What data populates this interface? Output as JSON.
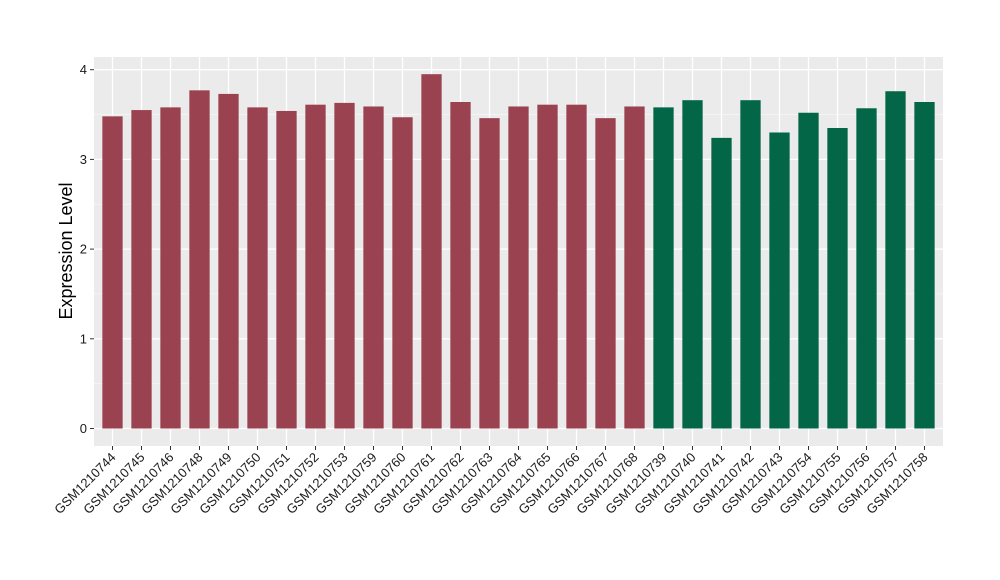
{
  "chart_data": {
    "type": "bar",
    "title": "",
    "xlabel": "",
    "ylabel": "Expression Level",
    "ylim": [
      0,
      4.1
    ],
    "yticks": [
      0,
      1,
      2,
      3,
      4
    ],
    "grid": true,
    "legend": "none",
    "background": "#ebebeb",
    "gridline_color": "#ffffff",
    "categories": [
      "GSM1210744",
      "GSM1210745",
      "GSM1210746",
      "GSM1210748",
      "GSM1210749",
      "GSM1210750",
      "GSM1210751",
      "GSM1210752",
      "GSM1210753",
      "GSM1210759",
      "GSM1210760",
      "GSM1210761",
      "GSM1210762",
      "GSM1210763",
      "GSM1210764",
      "GSM1210765",
      "GSM1210766",
      "GSM1210767",
      "GSM1210768",
      "GSM1210739",
      "GSM1210740",
      "GSM1210741",
      "GSM1210742",
      "GSM1210743",
      "GSM1210754",
      "GSM1210755",
      "GSM1210756",
      "GSM1210757",
      "GSM1210758"
    ],
    "values": [
      3.48,
      3.55,
      3.58,
      3.77,
      3.73,
      3.58,
      3.54,
      3.61,
      3.63,
      3.59,
      3.47,
      3.95,
      3.64,
      3.46,
      3.59,
      3.61,
      3.61,
      3.46,
      3.59,
      3.58,
      3.66,
      3.24,
      3.66,
      3.3,
      3.52,
      3.35,
      3.57,
      3.76,
      3.64
    ],
    "bar_colors": [
      "#9b4251",
      "#9b4251",
      "#9b4251",
      "#9b4251",
      "#9b4251",
      "#9b4251",
      "#9b4251",
      "#9b4251",
      "#9b4251",
      "#9b4251",
      "#9b4251",
      "#9b4251",
      "#9b4251",
      "#9b4251",
      "#9b4251",
      "#9b4251",
      "#9b4251",
      "#9b4251",
      "#9b4251",
      "#036647",
      "#036647",
      "#036647",
      "#036647",
      "#036647",
      "#036647",
      "#036647",
      "#036647",
      "#036647",
      "#036647"
    ]
  }
}
